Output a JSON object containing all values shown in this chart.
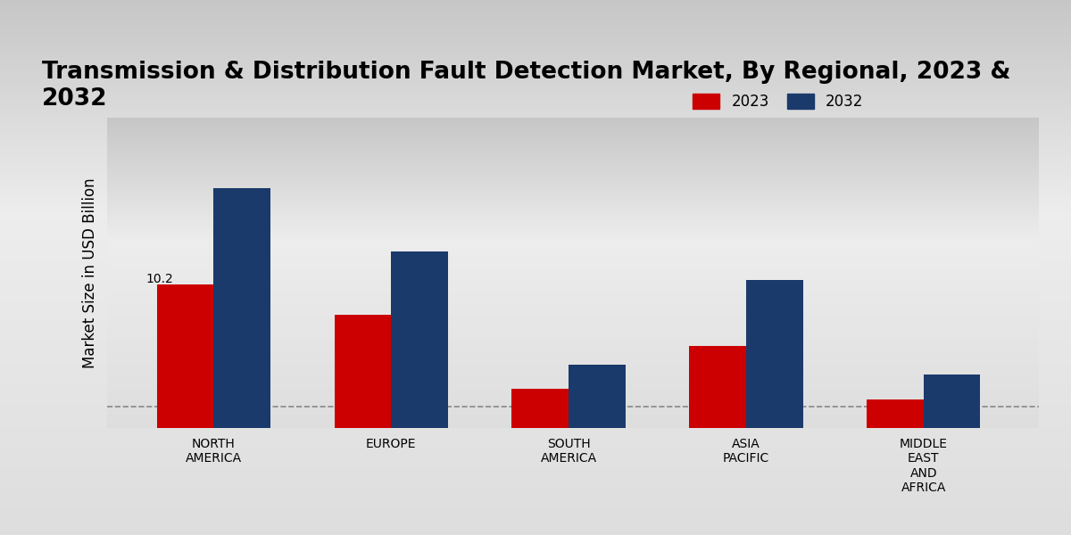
{
  "title": "Transmission & Distribution Fault Detection Market, By Regional, 2023 &\n2032",
  "ylabel": "Market Size in USD Billion",
  "categories": [
    "NORTH\nAMERICA",
    "EUROPE",
    "SOUTH\nAMERICA",
    "ASIA\nPACIFIC",
    "MIDDLE\nEAST\nAND\nAFRICA"
  ],
  "values_2023": [
    10.2,
    8.0,
    2.8,
    5.8,
    2.0
  ],
  "values_2032": [
    17.0,
    12.5,
    4.5,
    10.5,
    3.8
  ],
  "color_2023": "#cc0000",
  "color_2032": "#1a3a6b",
  "annotation_text": "10.2",
  "annotation_index": 0,
  "bg_top": "#d4d4d4",
  "bg_mid": "#ebebeb",
  "bg_bottom": "#d8d8d8",
  "bar_width": 0.32,
  "legend_labels": [
    "2023",
    "2032"
  ],
  "dashed_line_y": 1.5,
  "title_fontsize": 19,
  "ylabel_fontsize": 12,
  "tick_fontsize": 10,
  "ylim_max": 22.0
}
